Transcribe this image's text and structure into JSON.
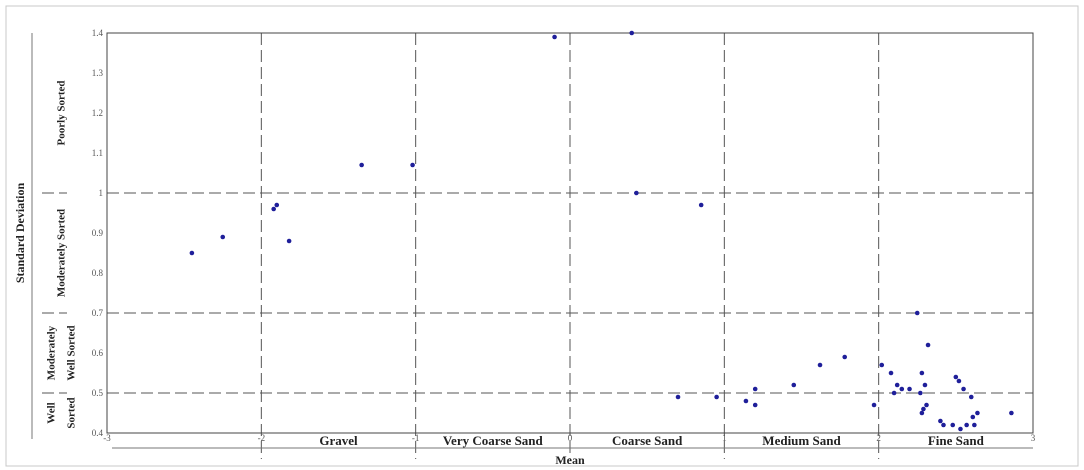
{
  "chart_data": {
    "type": "scatter",
    "xlabel": "Mean",
    "ylabel": "Standard Deviation",
    "xlim": [
      -3,
      3
    ],
    "ylim": [
      0.4,
      1.4
    ],
    "xticks": [
      "-3",
      "-2",
      "-1",
      "0",
      "1",
      "2",
      "3"
    ],
    "yticks": [
      "0.4",
      "0.5",
      "0.6",
      "0.7",
      "0.8",
      "0.9",
      "1",
      "1.1",
      "1.2",
      "1.3",
      "1.4"
    ],
    "grid": "dashed",
    "point_color": "#1f1f9a",
    "divider_x": [
      -2,
      -1,
      0,
      1,
      2
    ],
    "divider_y": [
      0.5,
      0.7,
      1.0
    ],
    "x_zones": [
      {
        "label": "Gravel",
        "from": -2,
        "to": -1
      },
      {
        "label": "Very Coarse Sand",
        "from": -1,
        "to": 0
      },
      {
        "label": "Coarse Sand",
        "from": 0,
        "to": 1
      },
      {
        "label": "Medium Sand",
        "from": 1,
        "to": 2
      },
      {
        "label": "Fine Sand",
        "from": 2,
        "to": 3
      }
    ],
    "y_bands": [
      {
        "lines": [
          "Poorly Sorted"
        ],
        "from": 1.0,
        "to": 1.4
      },
      {
        "lines": [
          "Moderately Sorted"
        ],
        "from": 0.7,
        "to": 1.0
      },
      {
        "lines": [
          "Moderately",
          "Well Sorted"
        ],
        "from": 0.5,
        "to": 0.7
      },
      {
        "lines": [
          "Well",
          "Sorted"
        ],
        "from": 0.4,
        "to": 0.5
      }
    ],
    "points": [
      {
        "x": -2.45,
        "y": 0.85
      },
      {
        "x": -2.25,
        "y": 0.89
      },
      {
        "x": -1.92,
        "y": 0.96
      },
      {
        "x": -1.9,
        "y": 0.97
      },
      {
        "x": -1.82,
        "y": 0.88
      },
      {
        "x": -1.35,
        "y": 1.07
      },
      {
        "x": -1.02,
        "y": 1.07
      },
      {
        "x": -0.1,
        "y": 1.39
      },
      {
        "x": 0.4,
        "y": 1.4
      },
      {
        "x": 0.43,
        "y": 1.0
      },
      {
        "x": 0.85,
        "y": 0.97
      },
      {
        "x": 0.7,
        "y": 0.49
      },
      {
        "x": 0.95,
        "y": 0.49
      },
      {
        "x": 1.14,
        "y": 0.48
      },
      {
        "x": 1.2,
        "y": 0.47
      },
      {
        "x": 1.2,
        "y": 0.51
      },
      {
        "x": 1.45,
        "y": 0.52
      },
      {
        "x": 1.62,
        "y": 0.57
      },
      {
        "x": 1.78,
        "y": 0.59
      },
      {
        "x": 1.97,
        "y": 0.47
      },
      {
        "x": 2.02,
        "y": 0.57
      },
      {
        "x": 2.08,
        "y": 0.55
      },
      {
        "x": 2.1,
        "y": 0.5
      },
      {
        "x": 2.12,
        "y": 0.52
      },
      {
        "x": 2.15,
        "y": 0.51
      },
      {
        "x": 2.2,
        "y": 0.51
      },
      {
        "x": 2.25,
        "y": 0.7
      },
      {
        "x": 2.27,
        "y": 0.5
      },
      {
        "x": 2.28,
        "y": 0.55
      },
      {
        "x": 2.28,
        "y": 0.45
      },
      {
        "x": 2.29,
        "y": 0.46
      },
      {
        "x": 2.3,
        "y": 0.52
      },
      {
        "x": 2.31,
        "y": 0.47
      },
      {
        "x": 2.32,
        "y": 0.62
      },
      {
        "x": 2.4,
        "y": 0.43
      },
      {
        "x": 2.42,
        "y": 0.42
      },
      {
        "x": 2.48,
        "y": 0.42
      },
      {
        "x": 2.5,
        "y": 0.54
      },
      {
        "x": 2.52,
        "y": 0.53
      },
      {
        "x": 2.53,
        "y": 0.41
      },
      {
        "x": 2.55,
        "y": 0.51
      },
      {
        "x": 2.57,
        "y": 0.42
      },
      {
        "x": 2.6,
        "y": 0.49
      },
      {
        "x": 2.61,
        "y": 0.44
      },
      {
        "x": 2.62,
        "y": 0.42
      },
      {
        "x": 2.64,
        "y": 0.45
      },
      {
        "x": 2.86,
        "y": 0.45
      }
    ]
  }
}
